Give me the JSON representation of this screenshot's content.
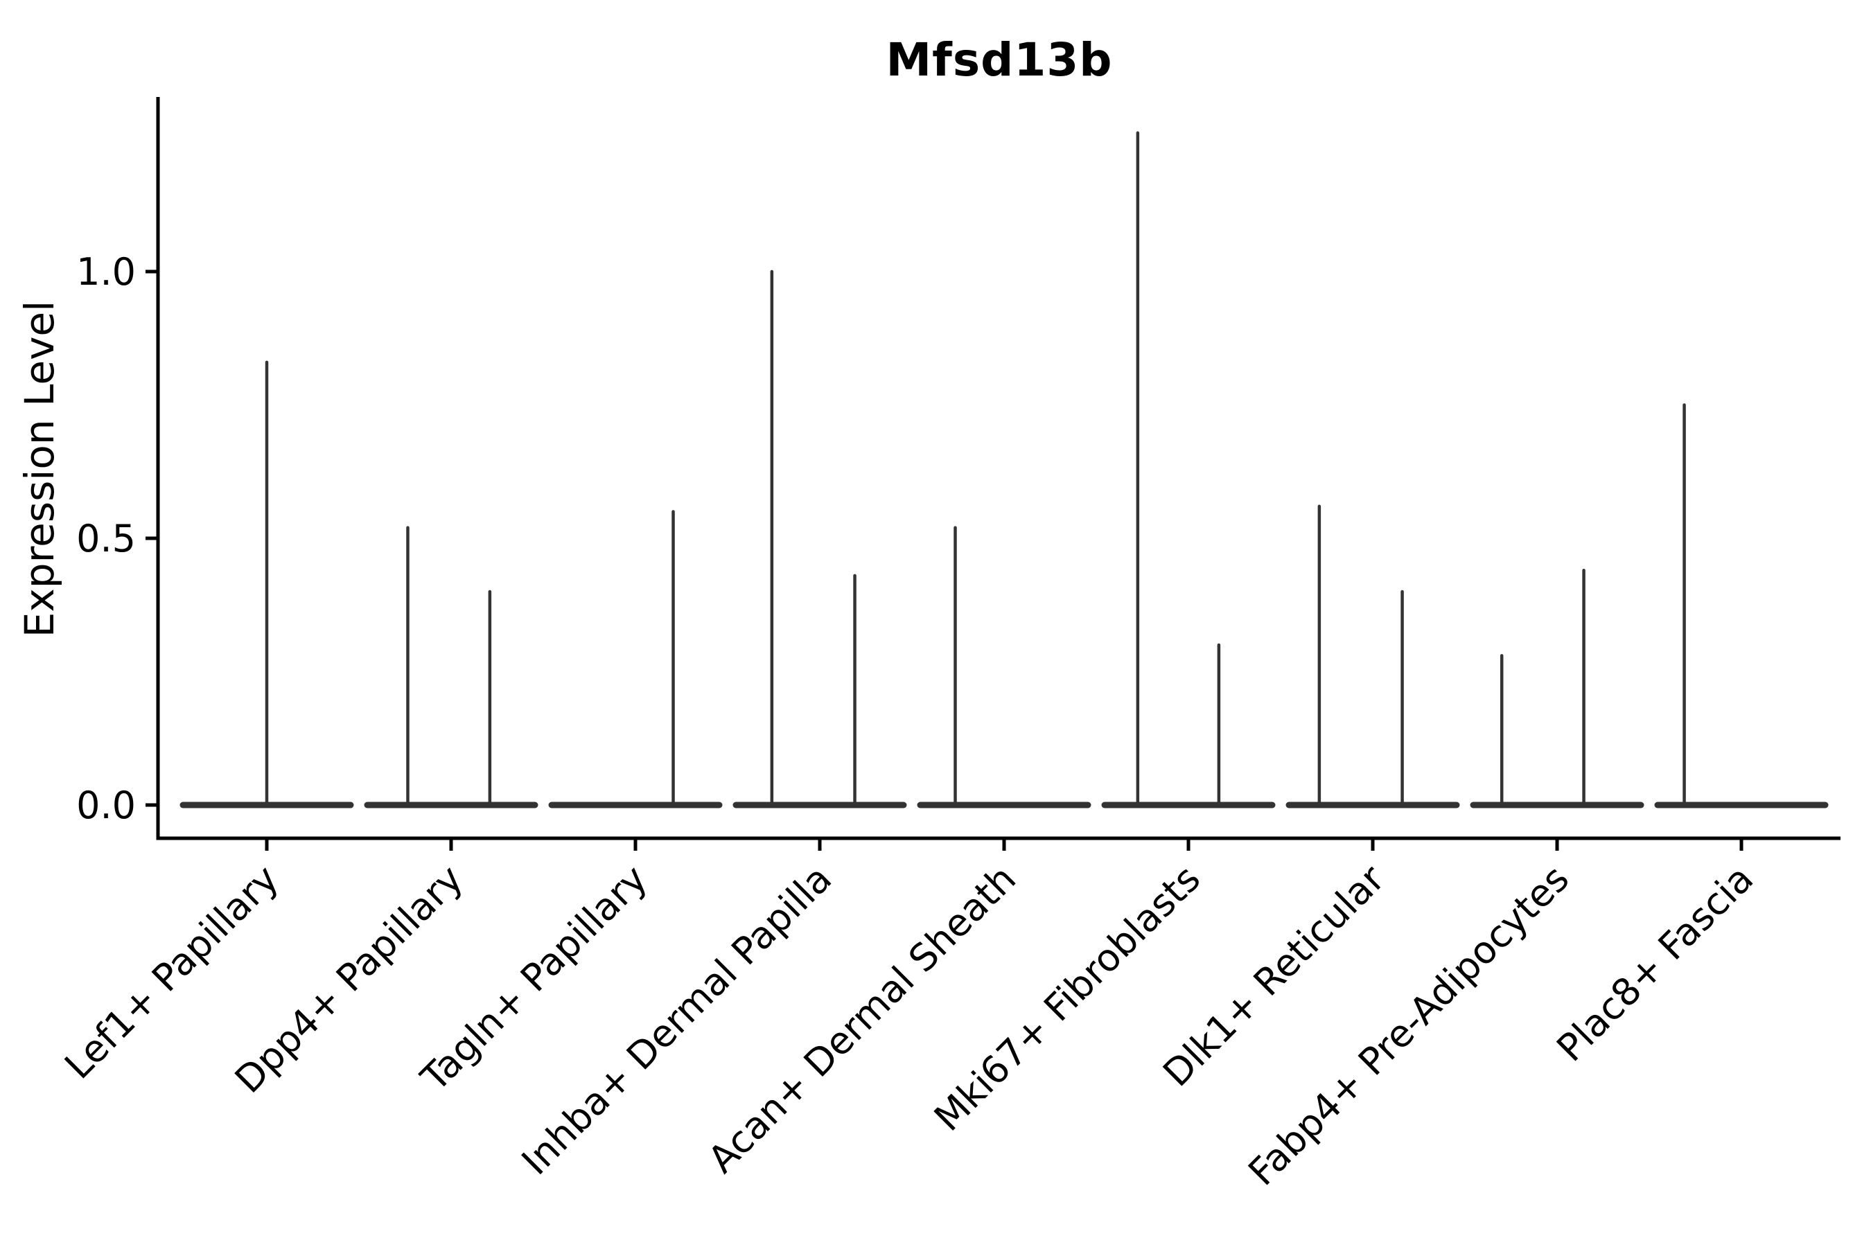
{
  "chart_data": {
    "type": "violin",
    "title": "Mfsd13b",
    "ylabel": "Expression Level",
    "xlabel": "",
    "grid": false,
    "legend": "none",
    "ylim": [
      -0.062,
      1.327
    ],
    "yticks": [
      0.0,
      0.5,
      1.0
    ],
    "ytick_labels": [
      "0.0",
      "0.5",
      "1.0"
    ],
    "x_label_rotation_deg": 45,
    "ink_color": "#333333",
    "axis_color": "#000000",
    "categories": [
      "Lef1+ Papillary",
      "Dpp4+ Papillary",
      "Tagln+ Papillary",
      "Inhba+ Dermal Papilla",
      "Acan+ Dermal Sheath",
      "Mki67+ Fibroblasts",
      "Dlk1+ Reticular",
      "Fabp4+ Pre-Adipocytes",
      "Plac8+ Fascia"
    ],
    "violins": [
      {
        "category": "Lef1+ Papillary",
        "body_at_zero": true,
        "spikes": [
          {
            "offset": 0.0,
            "value": 0.83
          }
        ]
      },
      {
        "category": "Dpp4+ Papillary",
        "body_at_zero": true,
        "spikes": [
          {
            "offset": -0.235,
            "value": 0.52
          },
          {
            "offset": 0.21,
            "value": 0.4
          }
        ]
      },
      {
        "category": "Tagln+ Papillary",
        "body_at_zero": true,
        "spikes": [
          {
            "offset": 0.205,
            "value": 0.55
          }
        ]
      },
      {
        "category": "Inhba+ Dermal Papilla",
        "body_at_zero": true,
        "spikes": [
          {
            "offset": -0.26,
            "value": 1.0
          },
          {
            "offset": 0.19,
            "value": 0.43
          }
        ]
      },
      {
        "category": "Acan+ Dermal Sheath",
        "body_at_zero": true,
        "spikes": [
          {
            "offset": -0.265,
            "value": 0.52
          }
        ]
      },
      {
        "category": "Mki67+ Fibroblasts",
        "body_at_zero": true,
        "spikes": [
          {
            "offset": -0.275,
            "value": 1.26
          },
          {
            "offset": 0.165,
            "value": 0.3
          }
        ]
      },
      {
        "category": "Dlk1+ Reticular",
        "body_at_zero": true,
        "spikes": [
          {
            "offset": -0.29,
            "value": 0.56
          },
          {
            "offset": 0.16,
            "value": 0.4
          }
        ]
      },
      {
        "category": "Fabp4+ Pre-Adipocytes",
        "body_at_zero": true,
        "spikes": [
          {
            "offset": -0.3,
            "value": 0.28
          },
          {
            "offset": 0.145,
            "value": 0.44
          }
        ]
      },
      {
        "category": "Plac8+ Fascia",
        "body_at_zero": true,
        "spikes": [
          {
            "offset": -0.31,
            "value": 0.75
          }
        ]
      }
    ]
  }
}
